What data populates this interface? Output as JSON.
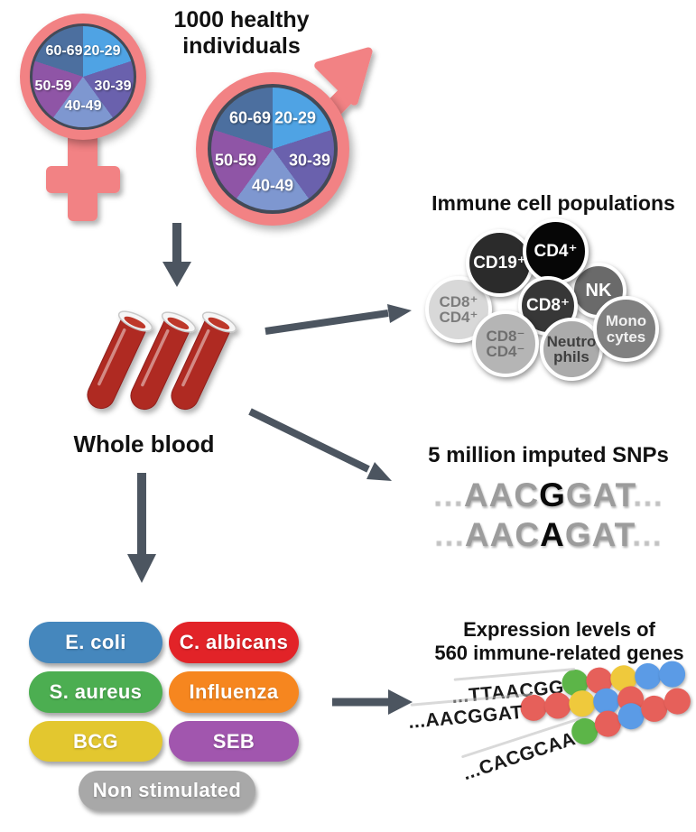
{
  "cohort": {
    "title": "1000 healthy\nindividuals",
    "age_groups": [
      {
        "label": "20-29",
        "color": "#4FA3E4"
      },
      {
        "label": "30-39",
        "color": "#6A61AD"
      },
      {
        "label": "40-49",
        "color": "#7E97D0"
      },
      {
        "label": "50-59",
        "color": "#8F55A6"
      },
      {
        "label": "60-69",
        "color": "#4C6F9F"
      }
    ]
  },
  "blood": {
    "label": "Whole blood"
  },
  "immune": {
    "title": "Immune cell populations",
    "cells": [
      {
        "label": "CD8⁺\nCD4⁺",
        "bg": "#D8D8D8",
        "fg": "#7C7C7C"
      },
      {
        "label": "CD19⁺",
        "bg": "#2B2B2B",
        "fg": "#FFFFFF"
      },
      {
        "label": "NK",
        "bg": "#6A6A6A",
        "fg": "#FFFFFF"
      },
      {
        "label": "CD4⁺",
        "bg": "#060606",
        "fg": "#FFFFFF"
      },
      {
        "label": "CD8⁺",
        "bg": "#373737",
        "fg": "#FFFFFF"
      },
      {
        "label": "CD8⁻\nCD4⁻",
        "bg": "#B5B5B5",
        "fg": "#6F6F6F"
      },
      {
        "label": "Neutro\nphils",
        "bg": "#ABABAB",
        "fg": "#3F3F3F"
      },
      {
        "label": "Mono\ncytes",
        "bg": "#808080",
        "fg": "#F0F0F0"
      }
    ]
  },
  "snps": {
    "title": "5 million imputed SNPs",
    "sequences": [
      {
        "prefix": "...",
        "before": "AAC",
        "variant": "G",
        "after": "GAT",
        "suffix": "..."
      },
      {
        "prefix": "...",
        "before": "AAC",
        "variant": "A",
        "after": "GAT",
        "suffix": "..."
      }
    ]
  },
  "stimuli": {
    "items": [
      {
        "label": "E. coli",
        "color": "#4587BD"
      },
      {
        "label": "C. albicans",
        "color": "#E22328"
      },
      {
        "label": "S. aureus",
        "color": "#4CAE51"
      },
      {
        "label": "Influenza",
        "color": "#F6861F"
      },
      {
        "label": "BCG",
        "color": "#E3C72F"
      },
      {
        "label": "SEB",
        "color": "#A156AE"
      },
      {
        "label": "Non stimulated",
        "color": "#A8A8A8"
      }
    ]
  },
  "expression": {
    "title": "Expression levels of\n560 immune-related genes",
    "palette": {
      "green": "#5CB548",
      "red": "#E6605A",
      "yellow": "#EFC93C",
      "blue": "#5B9BE6"
    },
    "rows": [
      {
        "sequence": "...TTAACGG",
        "dots": [
          "green",
          "red",
          "yellow",
          "blue",
          "blue"
        ]
      },
      {
        "sequence": "...AACGGAT",
        "dots": [
          "red",
          "red",
          "yellow",
          "blue",
          "red"
        ]
      },
      {
        "sequence": "...CACGCAA",
        "dots": [
          "green",
          "red",
          "blue",
          "red",
          "red"
        ]
      }
    ]
  },
  "colors": {
    "arrow": "#4C5560",
    "symbol_pink": "#F28284",
    "blood_red": "#AF2B22"
  }
}
